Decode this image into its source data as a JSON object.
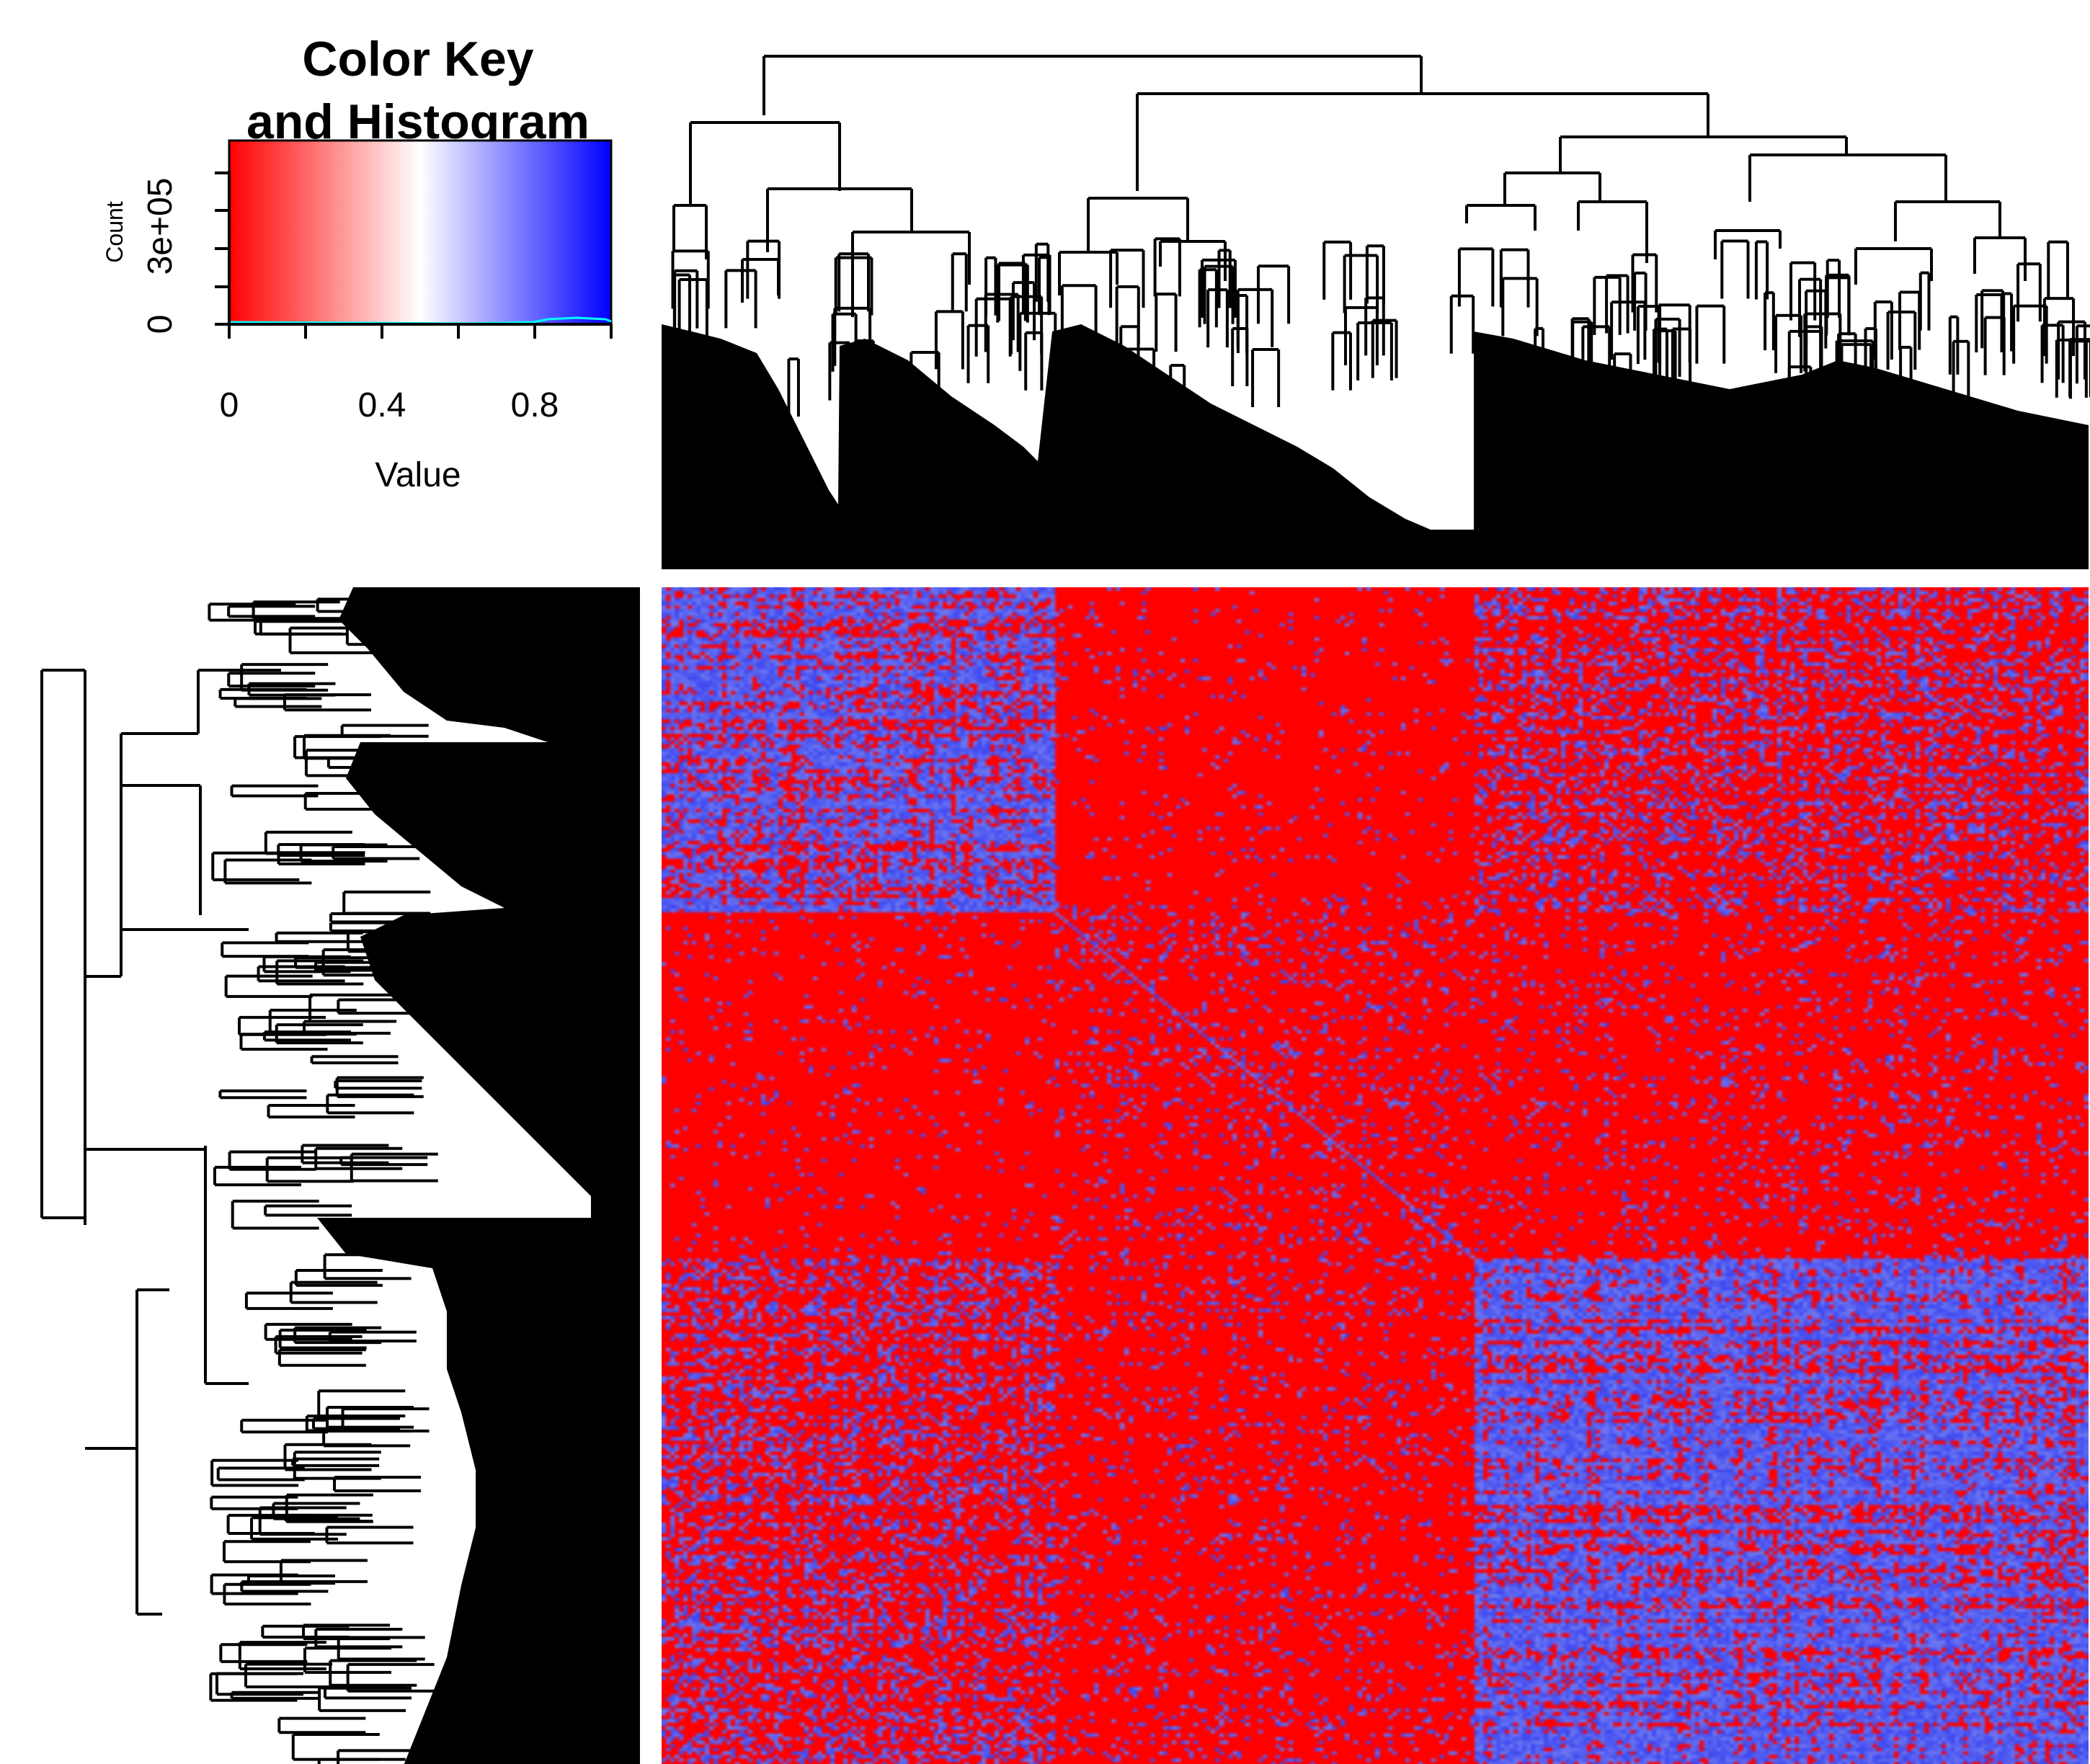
{
  "chart_data": [
    {
      "type": "heatmap",
      "title": "",
      "description_note": "clustered correlation heatmap",
      "row_dendrogram": true,
      "col_dendrogram": true,
      "symmetric": true,
      "colormap": [
        "#ff0000",
        "#ffffff",
        "#0000ff"
      ],
      "value_range": [
        0,
        1
      ],
      "clusters_note": "four major clusters along diagonal",
      "cluster_fractions": [
        0.125,
        0.15,
        0.295,
        0.43
      ],
      "cluster_blue_density": [
        0.85,
        0.75,
        0.12,
        0.8
      ]
    },
    {
      "type": "histogram",
      "title": "Color Key and Histogram",
      "title_lines": [
        "Color Key",
        "and Histogram"
      ],
      "xlabel": "Value",
      "ylabel": "Count",
      "xlim": [
        0,
        1
      ],
      "x_ticks": [
        0,
        0.4,
        0.8
      ],
      "x_tick_labels": [
        "0",
        "0.4",
        "0.8"
      ],
      "y_ticks": [
        0,
        300000
      ],
      "y_tick_labels": [
        "0",
        "3e+05"
      ],
      "hist_line_color": "#00ffff"
    }
  ]
}
